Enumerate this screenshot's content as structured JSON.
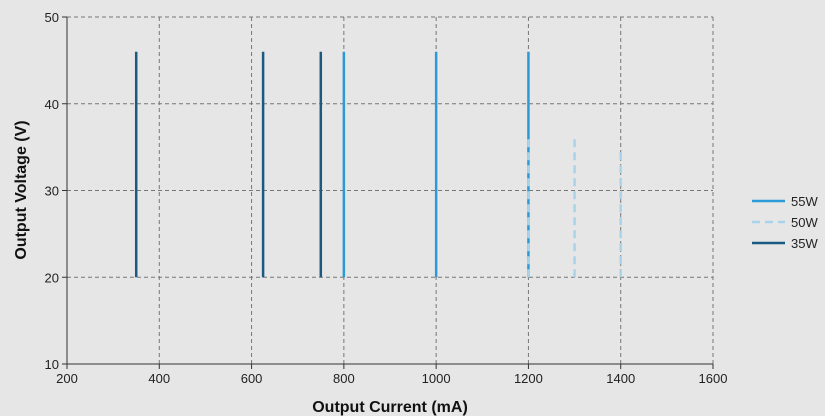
{
  "chart_data": {
    "type": "line",
    "xlabel": "Output Current (mA)",
    "ylabel": "Output Voltage (V)",
    "xlim": [
      200,
      1600
    ],
    "ylim": [
      10,
      50
    ],
    "xticks": [
      200,
      400,
      600,
      800,
      1000,
      1200,
      1400,
      1600
    ],
    "yticks": [
      10,
      20,
      30,
      40,
      50
    ],
    "grid": true,
    "legend_position": "right",
    "series": [
      {
        "name": "55W",
        "color": "#2b9ad6",
        "style": "solid",
        "segments": [
          {
            "x": 800,
            "y": [
              20,
              46
            ]
          },
          {
            "x": 1000,
            "y": [
              20,
              46
            ]
          },
          {
            "x": 1200,
            "y": [
              20,
              46
            ]
          }
        ]
      },
      {
        "name": "50W",
        "color": "#a9d3ea",
        "style": "dashed",
        "segments": [
          {
            "x": 1200,
            "y": [
              20,
              36
            ]
          },
          {
            "x": 1300,
            "y": [
              20,
              36
            ]
          },
          {
            "x": 1400,
            "y": [
              20,
              35
            ]
          }
        ]
      },
      {
        "name": "35W",
        "color": "#1b5a80",
        "style": "solid",
        "segments": [
          {
            "x": 350,
            "y": [
              20,
              46
            ]
          },
          {
            "x": 625,
            "y": [
              20,
              46
            ]
          },
          {
            "x": 750,
            "y": [
              20,
              46
            ]
          }
        ]
      }
    ]
  }
}
